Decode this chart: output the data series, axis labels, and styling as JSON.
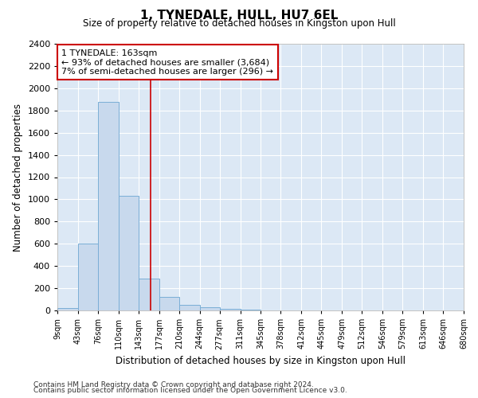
{
  "title": "1, TYNEDALE, HULL, HU7 6EL",
  "subtitle": "Size of property relative to detached houses in Kingston upon Hull",
  "xlabel": "Distribution of detached houses by size in Kingston upon Hull",
  "ylabel": "Number of detached properties",
  "footnote1": "Contains HM Land Registry data © Crown copyright and database right 2024.",
  "footnote2": "Contains public sector information licensed under the Open Government Licence v3.0.",
  "bin_edges": [
    9,
    43,
    76,
    110,
    143,
    177,
    210,
    244,
    277,
    311,
    345,
    378,
    412,
    445,
    479,
    512,
    546,
    579,
    613,
    646,
    680
  ],
  "bar_heights": [
    20,
    600,
    1880,
    1030,
    290,
    120,
    50,
    30,
    15,
    5,
    2,
    0,
    0,
    0,
    0,
    0,
    0,
    0,
    0,
    0
  ],
  "bar_color": "#c8d9ed",
  "bar_edgecolor": "#7aaed6",
  "bg_color": "#dce8f5",
  "grid_color": "#ffffff",
  "vline_x": 163,
  "vline_color": "#cc0000",
  "annotation_text": "1 TYNEDALE: 163sqm\n← 93% of detached houses are smaller (3,684)\n7% of semi-detached houses are larger (296) →",
  "annotation_box_color": "#cc0000",
  "ylim": [
    0,
    2400
  ],
  "yticks": [
    0,
    200,
    400,
    600,
    800,
    1000,
    1200,
    1400,
    1600,
    1800,
    2000,
    2200,
    2400
  ],
  "tick_labels": [
    "9sqm",
    "43sqm",
    "76sqm",
    "110sqm",
    "143sqm",
    "177sqm",
    "210sqm",
    "244sqm",
    "277sqm",
    "311sqm",
    "345sqm",
    "378sqm",
    "412sqm",
    "445sqm",
    "479sqm",
    "512sqm",
    "546sqm",
    "579sqm",
    "613sqm",
    "646sqm",
    "680sqm"
  ]
}
